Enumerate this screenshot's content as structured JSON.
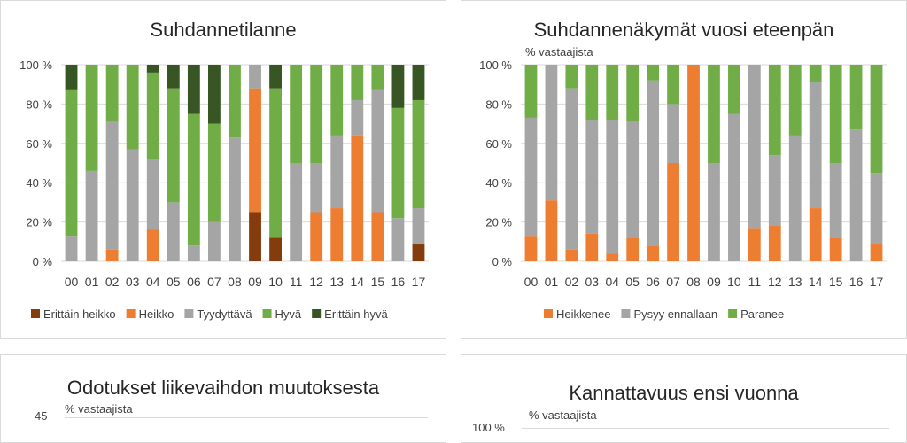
{
  "chart_data": [
    {
      "type": "bar",
      "stacked": true,
      "title": "Suhdannetilanne",
      "ylabel": "",
      "ylim": [
        0,
        100
      ],
      "yticks": [
        "0 %",
        "20 %",
        "40 %",
        "60 %",
        "80 %",
        "100 %"
      ],
      "categories": [
        "00",
        "01",
        "02",
        "03",
        "04",
        "05",
        "06",
        "07",
        "08",
        "09",
        "10",
        "11",
        "12",
        "13",
        "14",
        "15",
        "16",
        "17"
      ],
      "legend_position": "bottom",
      "grid": true,
      "series": [
        {
          "name": "Erittäin heikko",
          "color": "#843c0c",
          "values": [
            0,
            0,
            0,
            0,
            0,
            0,
            0,
            0,
            0,
            25,
            12,
            0,
            0,
            0,
            0,
            0,
            0,
            9
          ]
        },
        {
          "name": "Heikko",
          "color": "#ed7d31",
          "values": [
            0,
            0,
            6,
            0,
            16,
            0,
            0,
            0,
            0,
            63,
            0,
            0,
            25,
            27,
            64,
            25,
            0,
            0
          ]
        },
        {
          "name": "Tyydyttävä",
          "color": "#a5a5a5",
          "values": [
            13,
            46,
            65,
            57,
            36,
            30,
            8,
            20,
            63,
            12,
            0,
            50,
            25,
            37,
            18,
            62,
            22,
            18
          ]
        },
        {
          "name": "Hyvä",
          "color": "#70ad47",
          "values": [
            74,
            54,
            29,
            43,
            44,
            58,
            67,
            50,
            37,
            0,
            76,
            50,
            50,
            36,
            18,
            13,
            56,
            55
          ]
        },
        {
          "name": "Erittäin hyvä",
          "color": "#375623",
          "values": [
            13,
            0,
            0,
            0,
            4,
            12,
            25,
            30,
            0,
            0,
            12,
            0,
            0,
            0,
            0,
            0,
            22,
            18
          ]
        }
      ]
    },
    {
      "type": "bar",
      "stacked": true,
      "title": "Suhdannenäkymät vuosi eteenpän",
      "ylabel": "% vastaajista",
      "ylim": [
        0,
        100
      ],
      "yticks": [
        "0 %",
        "20 %",
        "40 %",
        "60 %",
        "80 %",
        "100 %"
      ],
      "categories": [
        "00",
        "01",
        "02",
        "03",
        "04",
        "05",
        "06",
        "07",
        "08",
        "09",
        "10",
        "11",
        "12",
        "13",
        "14",
        "15",
        "16",
        "17"
      ],
      "legend_position": "bottom",
      "grid": true,
      "series": [
        {
          "name": "Heikkenee",
          "color": "#ed7d31",
          "values": [
            13,
            31,
            6,
            14,
            4,
            12,
            8,
            50,
            100,
            0,
            0,
            17,
            18,
            0,
            27,
            12,
            0,
            9
          ]
        },
        {
          "name": "Pysyy ennallaan",
          "color": "#a5a5a5",
          "values": [
            60,
            69,
            82,
            58,
            68,
            59,
            84,
            30,
            0,
            50,
            75,
            83,
            36,
            64,
            64,
            38,
            67,
            36
          ]
        },
        {
          "name": "Paranee",
          "color": "#70ad47",
          "values": [
            27,
            0,
            12,
            28,
            28,
            29,
            8,
            20,
            0,
            50,
            25,
            0,
            46,
            36,
            9,
            50,
            33,
            55
          ]
        }
      ]
    },
    {
      "type": "bar",
      "title": "Odotukset liikevaihdon muutoksesta",
      "ylabel": "% vastaajista",
      "yticks": [
        "45"
      ],
      "ylim": [
        0,
        45
      ],
      "grid": true
    },
    {
      "type": "bar",
      "title": "Kannattavuus ensi vuonna",
      "ylabel": "% vastaajista",
      "yticks": [
        "100 %"
      ],
      "ylim": [
        0,
        100
      ],
      "grid": true
    }
  ]
}
